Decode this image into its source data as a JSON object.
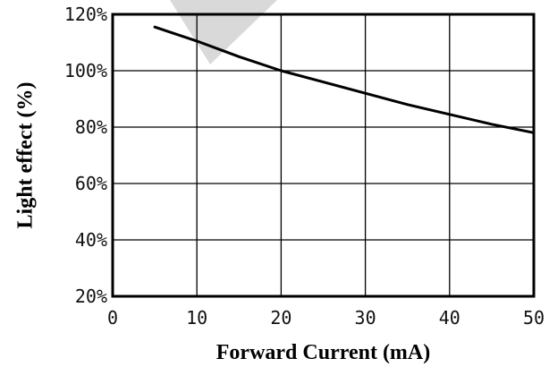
{
  "chart_data": {
    "type": "line",
    "title": "",
    "xlabel": "Forward Current (mA)",
    "ylabel": "Light effect (%)",
    "xlim": [
      0,
      50
    ],
    "ylim": [
      20,
      120
    ],
    "x_ticks": [
      0,
      10,
      20,
      30,
      40,
      50
    ],
    "y_ticks": [
      20,
      40,
      60,
      80,
      100,
      120
    ],
    "x_tick_labels": [
      "0",
      "10",
      "20",
      "30",
      "40",
      "50"
    ],
    "y_tick_labels": [
      "20%",
      "40%",
      "60%",
      "80%",
      "100%",
      "120%"
    ],
    "grid": true,
    "legend": "none",
    "series": [
      {
        "x": [
          5,
          10,
          15,
          20,
          25,
          30,
          35,
          40,
          45,
          50
        ],
        "y": [
          115.5,
          110.5,
          105,
          100,
          96,
          92,
          88,
          84.5,
          81,
          78
        ]
      }
    ],
    "colors": {
      "line": "#000000",
      "grid": "#000000",
      "watermark": "#d9d9d9"
    }
  }
}
